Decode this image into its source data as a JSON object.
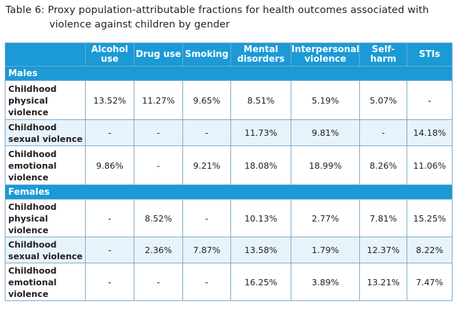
{
  "caption": {
    "line1": "Table 6: Proxy population-attributable fractions for health outcomes associated with",
    "line2": "violence against children by gender"
  },
  "headers": [
    "",
    "Alcohol use",
    "Drug use",
    "Smoking",
    "Mental disorders",
    "Interpersonal violence",
    "Self-harm",
    "STIs"
  ],
  "header_lines": {
    "alcohol": [
      "Alcohol",
      "use"
    ],
    "drug": [
      "Drug use"
    ],
    "smoking": [
      "Smoking"
    ],
    "mental": [
      "Mental",
      "disorders"
    ],
    "interpersonal": [
      "Interpersonal",
      "violence"
    ],
    "selfharm": [
      "Self-",
      "harm"
    ],
    "stis": [
      "STIs"
    ]
  },
  "sections": [
    {
      "label": "Males",
      "rows": [
        {
          "label_lines": [
            "Childhood",
            "physical",
            "violence"
          ],
          "values": [
            "13.52%",
            "11.27%",
            "9.65%",
            "8.51%",
            "5.19%",
            "5.07%",
            "-"
          ]
        },
        {
          "label_lines": [
            "Childhood",
            "sexual violence"
          ],
          "values": [
            "-",
            "-",
            "-",
            "11.73%",
            "9.81%",
            "-",
            "14.18%"
          ]
        },
        {
          "label_lines": [
            "Childhood",
            "emotional",
            "violence"
          ],
          "values": [
            "9.86%",
            "-",
            "9.21%",
            "18.08%",
            "18.99%",
            "8.26%",
            "11.06%"
          ]
        }
      ]
    },
    {
      "label": "Females",
      "rows": [
        {
          "label_lines": [
            "Childhood",
            "physical",
            "violence"
          ],
          "values": [
            "-",
            "8.52%",
            "-",
            "10.13%",
            "2.77%",
            "7.81%",
            "15.25%"
          ]
        },
        {
          "label_lines": [
            "Childhood",
            "sexual violence"
          ],
          "values": [
            "-",
            "2.36%",
            "7.87%",
            "13.58%",
            "1.79%",
            "12.37%",
            "8.22%"
          ]
        },
        {
          "label_lines": [
            "Childhood",
            "emotional",
            "violence"
          ],
          "values": [
            "-",
            "-",
            "-",
            "16.25%",
            "3.89%",
            "13.21%",
            "7.47%"
          ]
        }
      ]
    }
  ],
  "colors": {
    "header_bg": "#1b9ad6",
    "shade_bg": "#e7f3fb",
    "border": "#7ba7c9"
  }
}
